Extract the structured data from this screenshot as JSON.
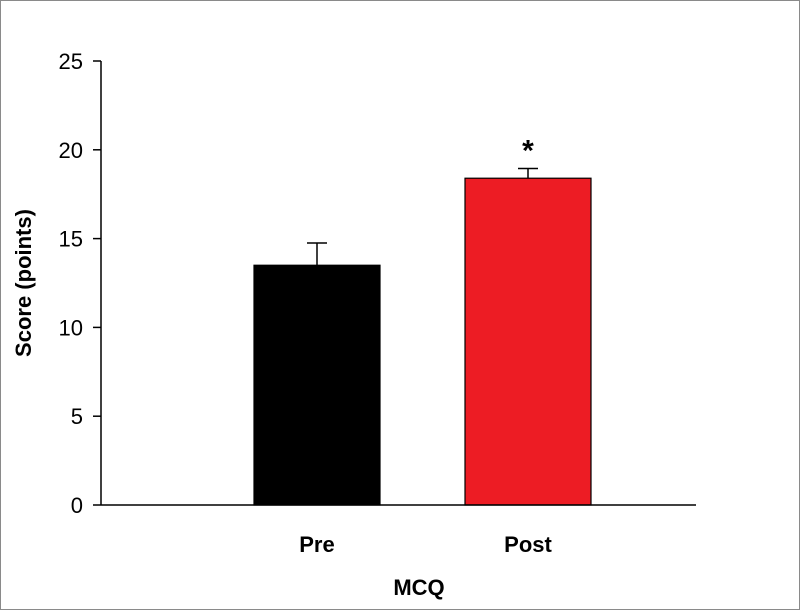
{
  "chart_data": {
    "type": "bar",
    "categories": [
      "Pre",
      "Post"
    ],
    "values": [
      13.5,
      18.4
    ],
    "error_upper": [
      14.75,
      18.95
    ],
    "annotations": [
      "",
      "*"
    ],
    "colors": [
      "#000000",
      "#ed1c24"
    ],
    "xlabel": "MCQ",
    "ylabel": "Score (points)",
    "ylim": [
      0,
      25
    ],
    "yticks": [
      0,
      5,
      10,
      15,
      20,
      25
    ],
    "grid": false,
    "legend": "none"
  }
}
